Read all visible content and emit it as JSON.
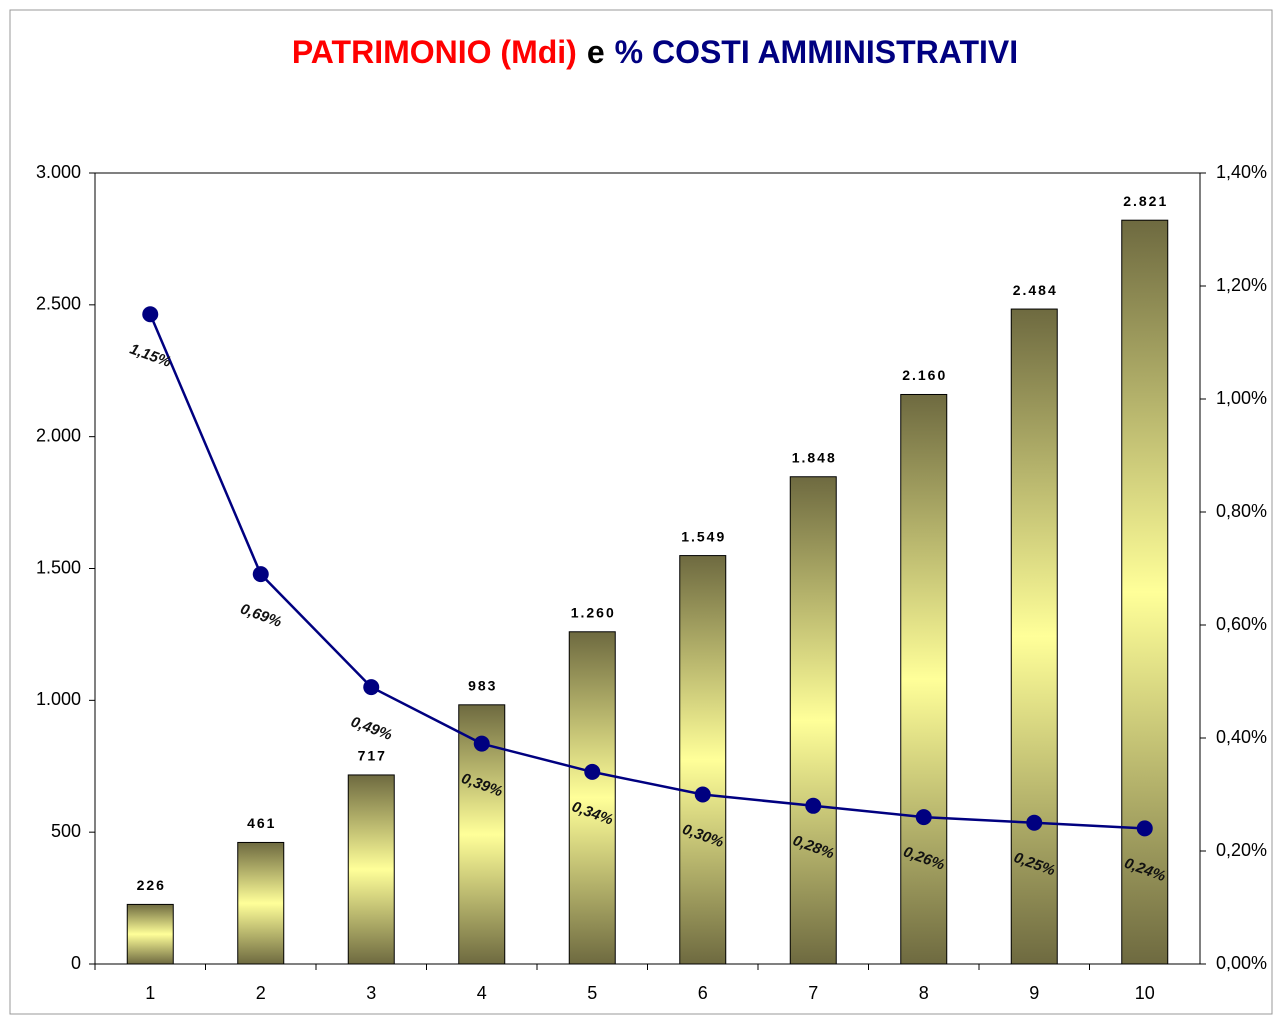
{
  "chart_data": {
    "type": "bar-line",
    "title": [
      {
        "text": "PATRIMONIO (Mdi)",
        "color": "#ff0000"
      },
      {
        "text": "e",
        "color": "#000000"
      },
      {
        "text": "% COSTI AMMINISTRATIVI",
        "color": "#000080"
      }
    ],
    "categories": [
      "1",
      "2",
      "3",
      "4",
      "5",
      "6",
      "7",
      "8",
      "9",
      "10"
    ],
    "series": [
      {
        "type": "bar",
        "color": "#6e6a40",
        "highlight": "#ffff99",
        "values": [
          226,
          461,
          717,
          983,
          1260,
          1549,
          1848,
          2160,
          2484,
          2821
        ],
        "value_labels": [
          "226",
          "461",
          "717",
          "983",
          "1.260",
          "1.549",
          "1.848",
          "2.160",
          "2.484",
          "2.821"
        ]
      },
      {
        "type": "line",
        "axis": "y2",
        "color": "#000080",
        "values": [
          1.15,
          0.69,
          0.49,
          0.39,
          0.34,
          0.3,
          0.28,
          0.26,
          0.25,
          0.24
        ],
        "value_labels": [
          "1,15%",
          "0,69%",
          "0,49%",
          "0,39%",
          "0,34%",
          "0,30%",
          "0,28%",
          "0,26%",
          "0,25%",
          "0,24%"
        ]
      }
    ],
    "ylim": [
      0,
      3000
    ],
    "yticks": [
      0,
      500,
      {
        "value": 1000,
        "label": "1.000"
      },
      {
        "value": 1500,
        "label": "1.500"
      },
      {
        "value": 2000,
        "label": "2.000"
      },
      {
        "value": 2500,
        "label": "2.500"
      },
      {
        "value": 3000,
        "label": "3.000"
      }
    ],
    "y2lim": [
      0,
      1.4
    ],
    "y2ticks": [
      {
        "value": 0,
        "label": "0,00%"
      },
      {
        "value": 0.2,
        "label": "0,20%"
      },
      {
        "value": 0.4,
        "label": "0,40%"
      },
      {
        "value": 0.6,
        "label": "0,60%"
      },
      {
        "value": 0.8,
        "label": "0,80%"
      },
      {
        "value": 1.0,
        "label": "1,00%"
      },
      {
        "value": 1.2,
        "label": "1,20%"
      },
      {
        "value": 1.4,
        "label": "1,40%"
      }
    ],
    "grid": false
  }
}
